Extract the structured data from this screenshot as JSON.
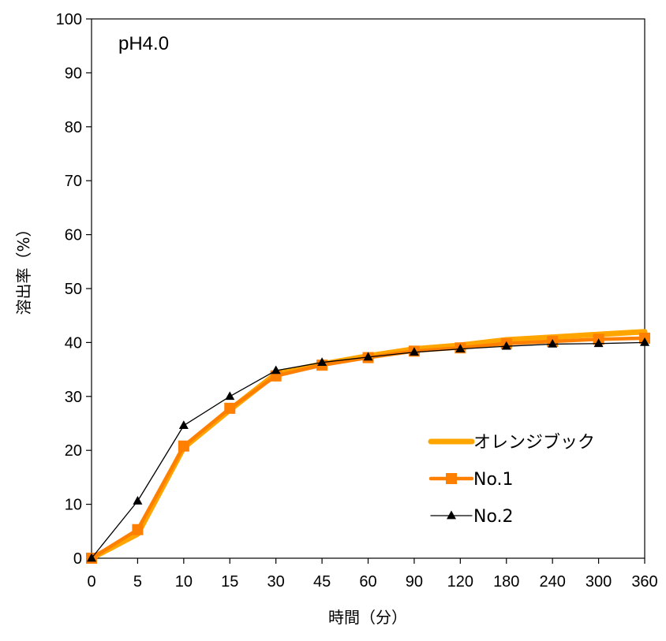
{
  "chart_data": {
    "type": "line",
    "annotation": "pH4.0",
    "xlabel": "時間（分）",
    "ylabel": "溶出率（%）",
    "categories": [
      "0",
      "5",
      "10",
      "15",
      "30",
      "45",
      "60",
      "90",
      "120",
      "180",
      "240",
      "300",
      "360"
    ],
    "ylim": [
      0,
      100
    ],
    "yticks": [
      0,
      10,
      20,
      30,
      40,
      50,
      60,
      70,
      80,
      90,
      100
    ],
    "grid": false,
    "legend_position": "bottom-right",
    "series": [
      {
        "name": "オレンジブック",
        "color": "#FFA500",
        "marker": "none",
        "values": [
          0,
          4.5,
          20.5,
          27.5,
          34.2,
          36.0,
          37.5,
          38.8,
          39.5,
          40.5,
          41.0,
          41.5,
          42.0
        ]
      },
      {
        "name": "No.1",
        "color": "#FF7F00",
        "marker": "square",
        "values": [
          0,
          5.3,
          20.8,
          27.8,
          33.8,
          35.8,
          37.2,
          38.4,
          39.0,
          39.8,
          40.2,
          40.6,
          40.8
        ]
      },
      {
        "name": "No.2",
        "color": "#000000",
        "marker": "triangle",
        "values": [
          0,
          10.6,
          24.6,
          30.0,
          34.8,
          36.3,
          37.3,
          38.2,
          38.8,
          39.3,
          39.7,
          39.8,
          40.0
        ]
      }
    ]
  }
}
